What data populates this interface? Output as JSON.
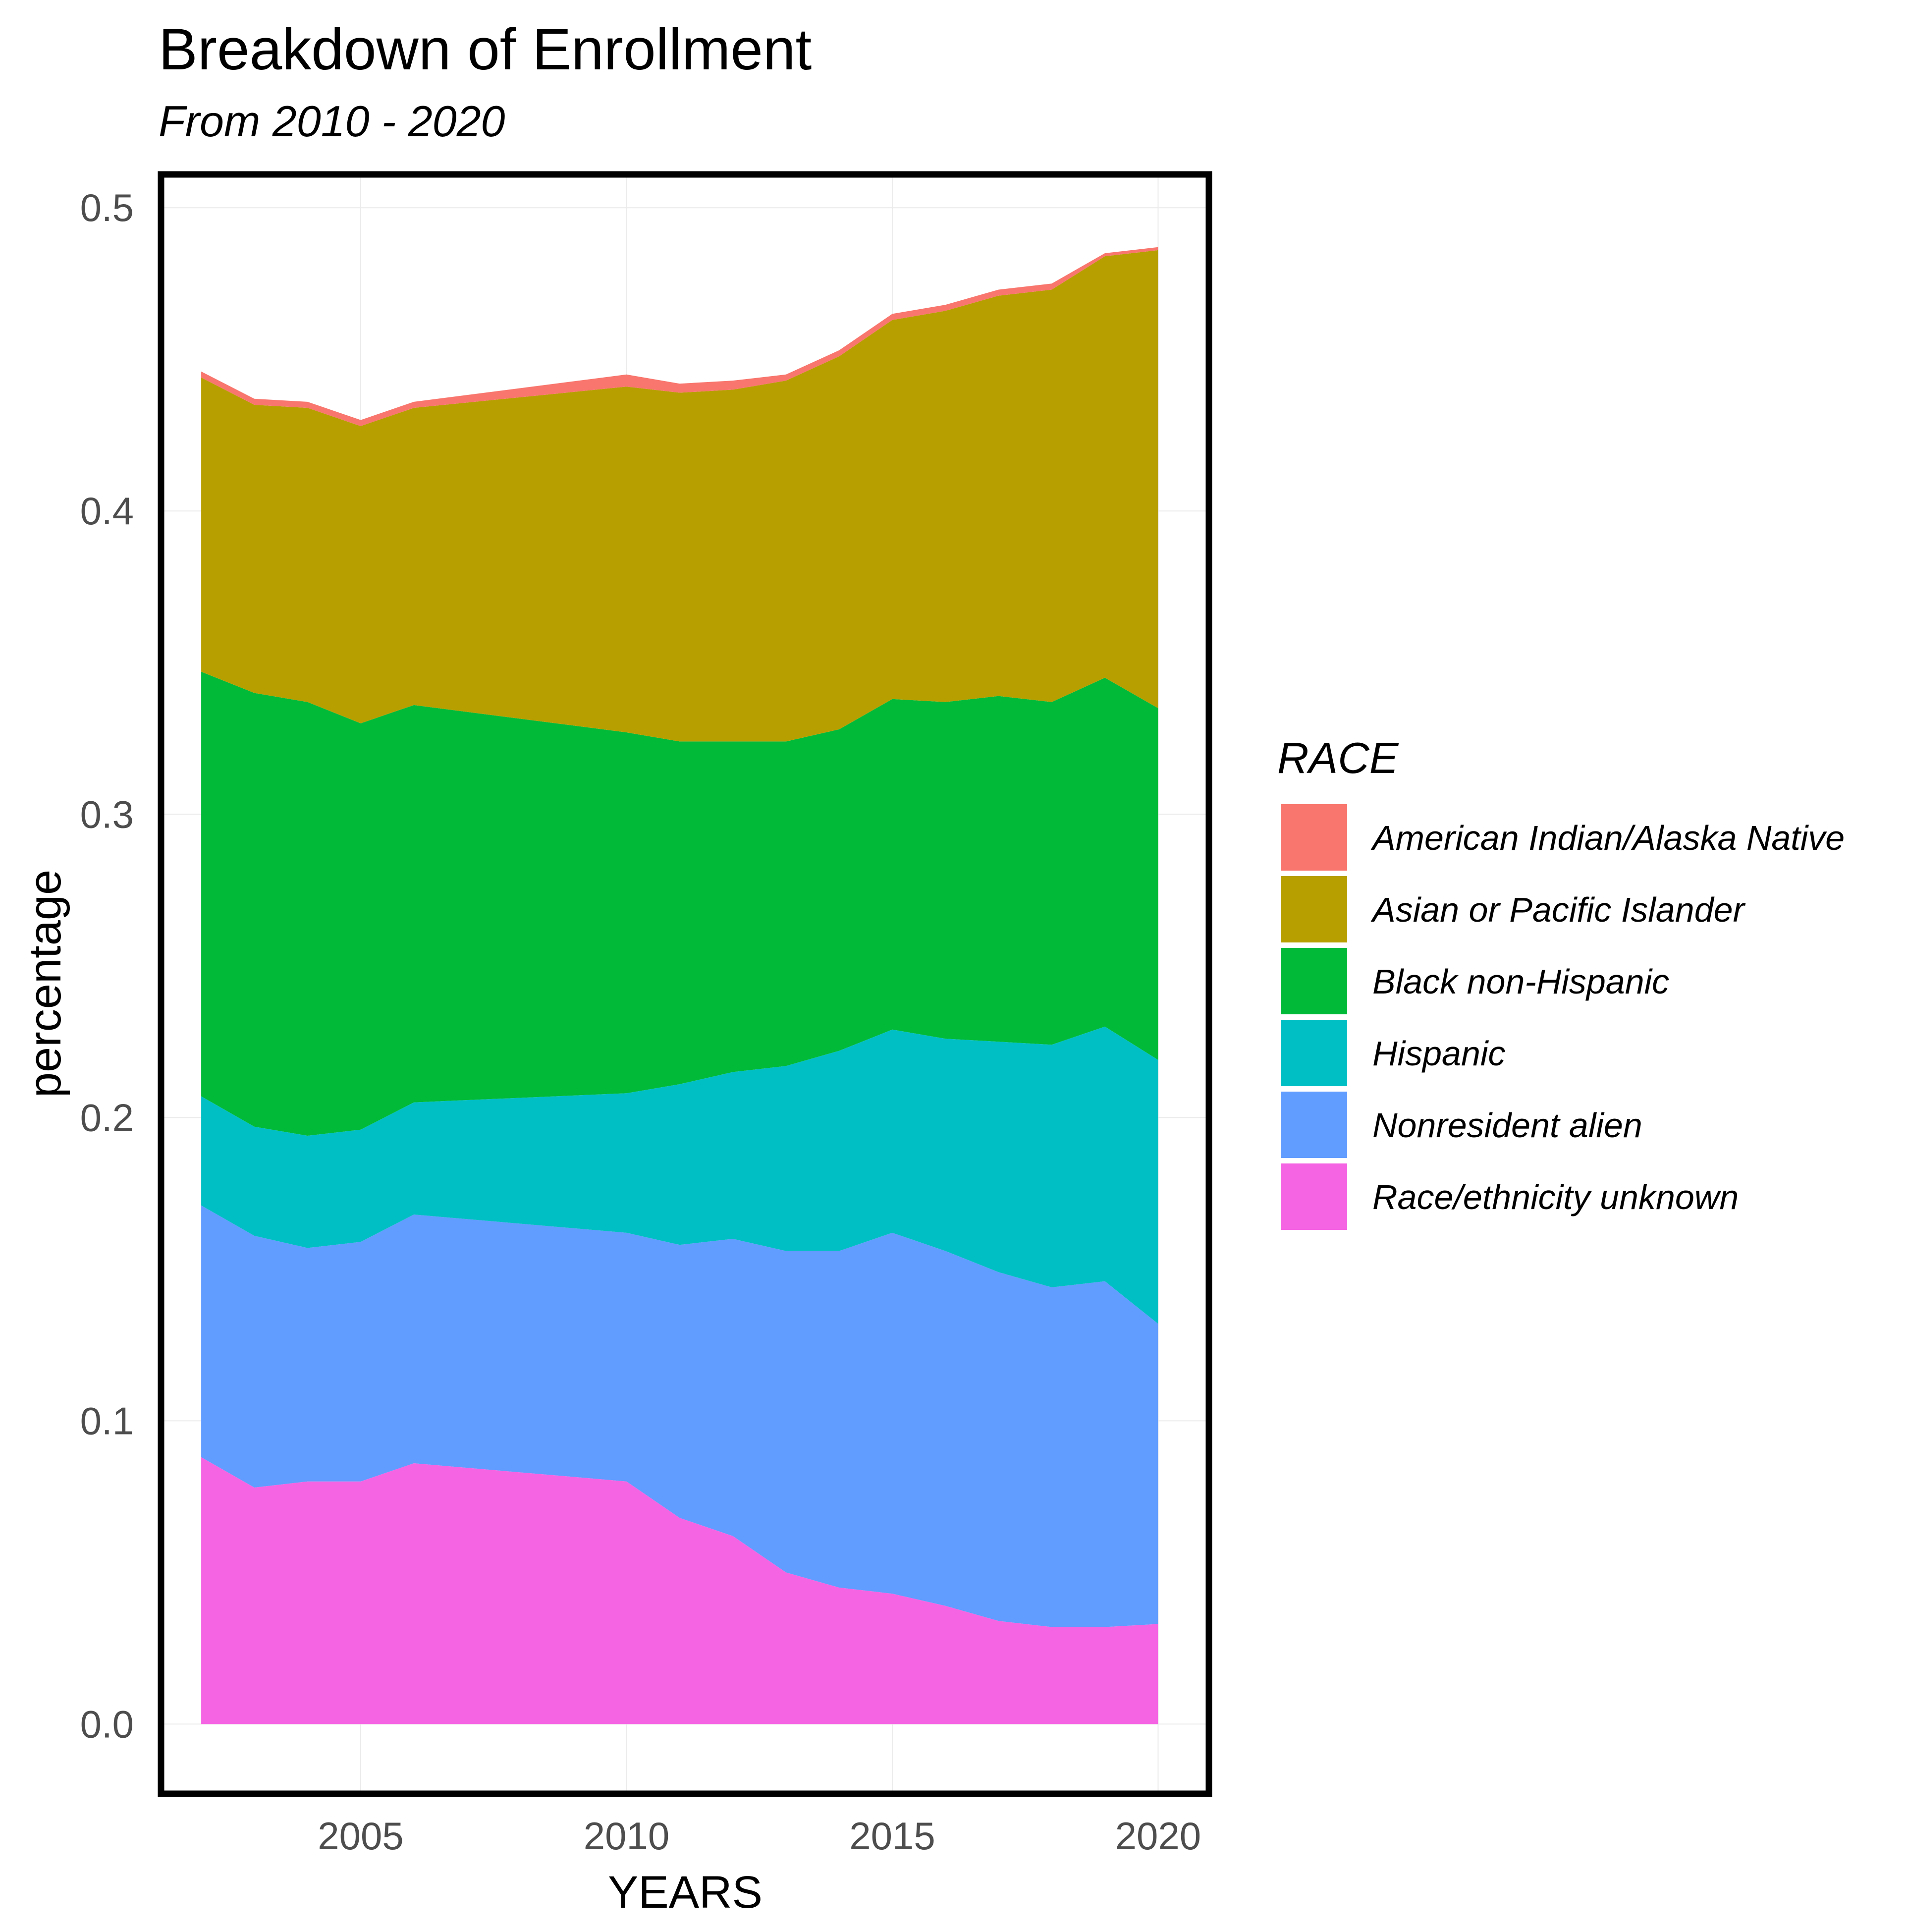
{
  "chart_data": {
    "type": "area",
    "title": "Breakdown of Enrollment",
    "subtitle": "From 2010 - 2020",
    "xlabel": "YEARS",
    "ylabel": "percentage",
    "legend_title": "RACE",
    "legend_position": "right",
    "stacked": true,
    "grid": true,
    "xlim": [
      2001.3,
      2020.9
    ],
    "ylim": [
      -0.022,
      0.51
    ],
    "x_ticks": [
      2005,
      2010,
      2015,
      2020
    ],
    "y_ticks": [
      0.0,
      0.1,
      0.2,
      0.3,
      0.4,
      0.5
    ],
    "x_tick_labels": [
      "2005",
      "2010",
      "2015",
      "2020"
    ],
    "y_tick_labels": [
      "0.0",
      "0.1",
      "0.2",
      "0.3",
      "0.4",
      "0.5"
    ],
    "x": [
      2002,
      2003,
      2004,
      2005,
      2006,
      2010,
      2011,
      2012,
      2013,
      2014,
      2015,
      2016,
      2017,
      2018,
      2019,
      2020
    ],
    "series": [
      {
        "name": "American Indian/Alaska Native",
        "color": "#F8766D",
        "values": [
          0.002,
          0.002,
          0.002,
          0.002,
          0.002,
          0.004,
          0.003,
          0.003,
          0.002,
          0.002,
          0.002,
          0.002,
          0.002,
          0.002,
          0.001,
          0.001
        ]
      },
      {
        "name": "Asian or Pacific Islander",
        "color": "#B79F00",
        "values": [
          0.097,
          0.095,
          0.097,
          0.098,
          0.098,
          0.114,
          0.115,
          0.116,
          0.119,
          0.123,
          0.125,
          0.129,
          0.132,
          0.136,
          0.139,
          0.151
        ]
      },
      {
        "name": "Black non-Hispanic",
        "color": "#00BA38",
        "values": [
          0.14,
          0.143,
          0.143,
          0.134,
          0.131,
          0.119,
          0.113,
          0.109,
          0.107,
          0.106,
          0.109,
          0.111,
          0.114,
          0.113,
          0.115,
          0.116
        ]
      },
      {
        "name": "Hispanic",
        "color": "#00BFC4",
        "values": [
          0.036,
          0.036,
          0.037,
          0.037,
          0.037,
          0.046,
          0.053,
          0.055,
          0.061,
          0.066,
          0.067,
          0.07,
          0.076,
          0.08,
          0.084,
          0.087
        ]
      },
      {
        "name": "Nonresident alien",
        "color": "#619CFF",
        "values": [
          0.083,
          0.083,
          0.077,
          0.079,
          0.082,
          0.082,
          0.09,
          0.098,
          0.106,
          0.111,
          0.119,
          0.117,
          0.115,
          0.112,
          0.114,
          0.099
        ]
      },
      {
        "name": "Race/ethnicity unknown",
        "color": "#F564E3",
        "values": [
          0.088,
          0.078,
          0.08,
          0.08,
          0.086,
          0.08,
          0.068,
          0.062,
          0.05,
          0.045,
          0.043,
          0.039,
          0.034,
          0.032,
          0.032,
          0.033
        ]
      }
    ]
  }
}
